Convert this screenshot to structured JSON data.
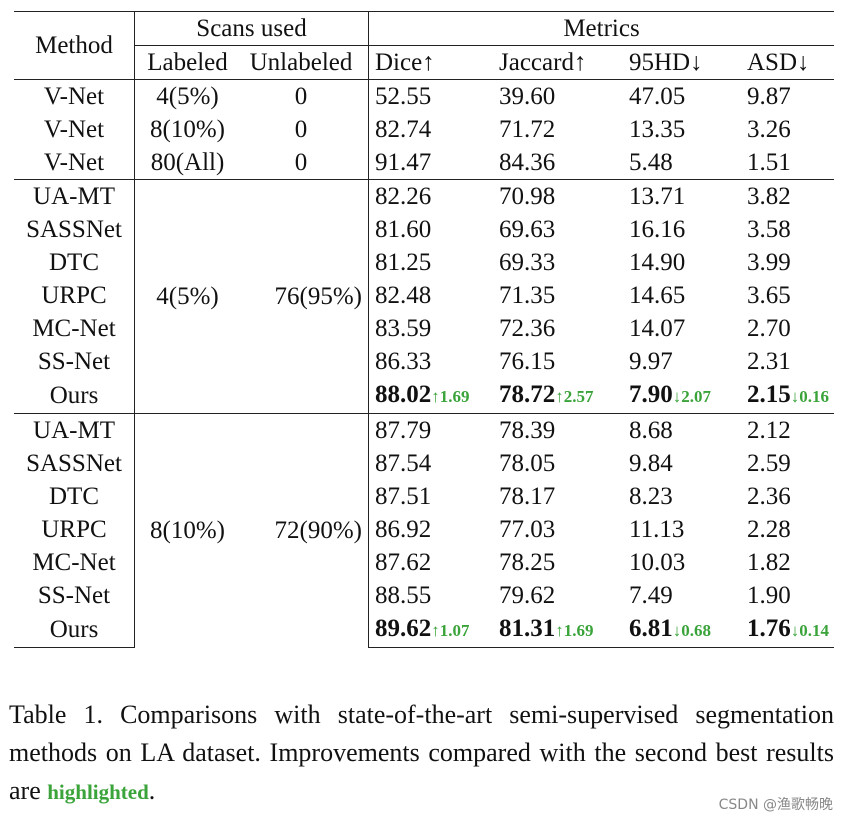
{
  "headers": {
    "method": "Method",
    "scans_used": "Scans used",
    "labeled": "Labeled",
    "unlabeled": "Unlabeled",
    "metrics": "Metrics",
    "dice": "Dice↑",
    "jaccard": "Jaccard↑",
    "hd95": "95HD↓",
    "asd": "ASD↓"
  },
  "group0": [
    {
      "method": "V-Net",
      "labeled": "4(5%)",
      "unlabeled": "0",
      "dice": "52.55",
      "jaccard": "39.60",
      "hd95": "47.05",
      "asd": "9.87"
    },
    {
      "method": "V-Net",
      "labeled": "8(10%)",
      "unlabeled": "0",
      "dice": "82.74",
      "jaccard": "71.72",
      "hd95": "13.35",
      "asd": "3.26"
    },
    {
      "method": "V-Net",
      "labeled": "80(All)",
      "unlabeled": "0",
      "dice": "91.47",
      "jaccard": "84.36",
      "hd95": "5.48",
      "asd": "1.51"
    }
  ],
  "group1": {
    "labeled": "4(5%)",
    "unlabeled": "76(95%)",
    "rows": [
      {
        "method": "UA-MT",
        "dice": "82.26",
        "jaccard": "70.98",
        "hd95": "13.71",
        "asd": "3.82"
      },
      {
        "method": "SASSNet",
        "dice": "81.60",
        "jaccard": "69.63",
        "hd95": "16.16",
        "asd": "3.58"
      },
      {
        "method": "DTC",
        "dice": "81.25",
        "jaccard": "69.33",
        "hd95": "14.90",
        "asd": "3.99"
      },
      {
        "method": "URPC",
        "dice": "82.48",
        "jaccard": "71.35",
        "hd95": "14.65",
        "asd": "3.65"
      },
      {
        "method": "MC-Net",
        "dice": "83.59",
        "jaccard": "72.36",
        "hd95": "14.07",
        "asd": "2.70"
      },
      {
        "method": "SS-Net",
        "dice": "86.33",
        "jaccard": "76.15",
        "hd95": "9.97",
        "asd": "2.31"
      }
    ],
    "ours": {
      "method": "Ours",
      "dice": "88.02",
      "dice_impr": "↑1.69",
      "jaccard": "78.72",
      "jaccard_impr": "↑2.57",
      "hd95": "7.90",
      "hd95_impr": "↓2.07",
      "asd": "2.15",
      "asd_impr": "↓0.16"
    }
  },
  "group2": {
    "labeled": "8(10%)",
    "unlabeled": "72(90%)",
    "rows": [
      {
        "method": "UA-MT",
        "dice": "87.79",
        "jaccard": "78.39",
        "hd95": "8.68",
        "asd": "2.12"
      },
      {
        "method": "SASSNet",
        "dice": "87.54",
        "jaccard": "78.05",
        "hd95": "9.84",
        "asd": "2.59"
      },
      {
        "method": "DTC",
        "dice": "87.51",
        "jaccard": "78.17",
        "hd95": "8.23",
        "asd": "2.36"
      },
      {
        "method": "URPC",
        "dice": "86.92",
        "jaccard": "77.03",
        "hd95": "11.13",
        "asd": "2.28"
      },
      {
        "method": "MC-Net",
        "dice": "87.62",
        "jaccard": "78.25",
        "hd95": "10.03",
        "asd": "1.82"
      },
      {
        "method": "SS-Net",
        "dice": "88.55",
        "jaccard": "79.62",
        "hd95": "7.49",
        "asd": "1.90"
      }
    ],
    "ours": {
      "method": "Ours",
      "dice": "89.62",
      "dice_impr": "↑1.07",
      "jaccard": "81.31",
      "jaccard_impr": "↑1.69",
      "hd95": "6.81",
      "hd95_impr": "↓0.68",
      "asd": "1.76",
      "asd_impr": "↓0.14"
    }
  },
  "caption": {
    "main": "Table 1.  Comparisons with state-of-the-art semi-supervised segmentation methods on LA dataset. Improvements compared with the second best results are ",
    "highlight": "highlighted",
    "end": "."
  },
  "watermark": "CSDN @渔歌畅晚",
  "colors": {
    "highlight": "#3aa33a"
  }
}
